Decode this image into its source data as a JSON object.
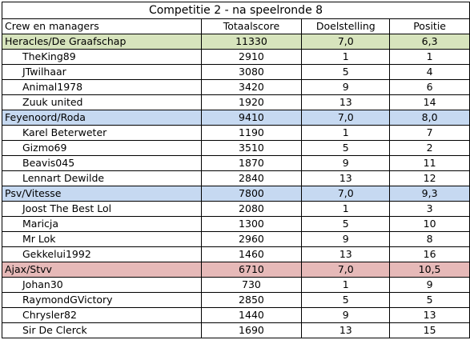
{
  "title": "Competitie 2 - na speelronde 8",
  "headers": [
    "Crew en managers",
    "Totaalscore",
    "Doelstelling",
    "Positie"
  ],
  "colors": {
    "green": "#d7e4bd",
    "blue": "#c6d9f1",
    "red": "#e6b9b8"
  },
  "teams": [
    {
      "name": "Heracles/De Graafschap",
      "score": "11330",
      "goal": "7,0",
      "position": "6,3",
      "color": "green",
      "managers": [
        {
          "name": "TheKing89",
          "score": "2910",
          "goal": "1",
          "position": "1"
        },
        {
          "name": "JTwilhaar",
          "score": "3080",
          "goal": "5",
          "position": "4"
        },
        {
          "name": "Animal1978",
          "score": "3420",
          "goal": "9",
          "position": "6"
        },
        {
          "name": "Zuuk united",
          "score": "1920",
          "goal": "13",
          "position": "14"
        }
      ]
    },
    {
      "name": "Feyenoord/Roda",
      "score": "9410",
      "goal": "7,0",
      "position": "8,0",
      "color": "blue",
      "managers": [
        {
          "name": "Karel Beterweter",
          "score": "1190",
          "goal": "1",
          "position": "7"
        },
        {
          "name": "Gizmo69",
          "score": "3510",
          "goal": "5",
          "position": "2"
        },
        {
          "name": "Beavis045",
          "score": "1870",
          "goal": "9",
          "position": "11"
        },
        {
          "name": "Lennart Dewilde",
          "score": "2840",
          "goal": "13",
          "position": "12"
        }
      ]
    },
    {
      "name": "Psv/Vitesse",
      "score": "7800",
      "goal": "7,0",
      "position": "9,3",
      "color": "blue",
      "managers": [
        {
          "name": "Joost The Best Lol",
          "score": "2080",
          "goal": "1",
          "position": "3"
        },
        {
          "name": "Maricja",
          "score": "1300",
          "goal": "5",
          "position": "10"
        },
        {
          "name": "Mr Lok",
          "score": "2960",
          "goal": "9",
          "position": "8"
        },
        {
          "name": "Gekkelui1992",
          "score": "1460",
          "goal": "13",
          "position": "16"
        }
      ]
    },
    {
      "name": "Ajax/Stvv",
      "score": "6710",
      "goal": "7,0",
      "position": "10,5",
      "color": "red",
      "managers": [
        {
          "name": "Johan30",
          "score": "730",
          "goal": "1",
          "position": "9"
        },
        {
          "name": "RaymondGVictory",
          "score": "2850",
          "goal": "5",
          "position": "5"
        },
        {
          "name": "Chrysler82",
          "score": "1440",
          "goal": "9",
          "position": "13"
        },
        {
          "name": "Sir De Clerck",
          "score": "1690",
          "goal": "13",
          "position": "15"
        }
      ]
    }
  ]
}
